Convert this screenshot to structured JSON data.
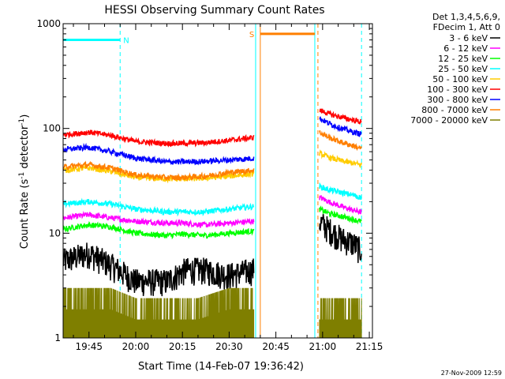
{
  "chart_data": {
    "type": "line",
    "title": "HESSI Observing Summary Count Rates",
    "xlabel": "Start Time (14-Feb-07 19:36:42)",
    "ylabel_main": "Count Rate (s",
    "ylabel_sup1": "-1",
    "ylabel_mid": " detector",
    "ylabel_sup2": "-1",
    "ylabel_end": ")",
    "y_scale": "log",
    "ylim": [
      1,
      1000
    ],
    "xlim": [
      "19:36:42",
      "21:16:00"
    ],
    "x_ticks": [
      "19:45",
      "20:00",
      "20:15",
      "20:30",
      "20:45",
      "21:00",
      "21:15"
    ],
    "y_ticks": [
      "1",
      "10",
      "100",
      "1000"
    ],
    "footer_date": "27-Nov-2009 12:59",
    "legend": {
      "header_line1": "Det 1,3,4,5,6,9,",
      "header_line2": "FDecim 1, Att 0",
      "placement": "top-right outside"
    },
    "flags": [
      {
        "label": "N",
        "color": "#00ffff",
        "start": "19:36:42",
        "end": "19:55:00",
        "level": 700
      },
      {
        "label": "S",
        "color": "#ff7f00",
        "start": "20:40:00",
        "end": "20:57:30",
        "level": 800
      }
    ],
    "boundaries": [
      {
        "time": "19:55:00",
        "color": "#00ffff",
        "style": "dashed"
      },
      {
        "time": "20:38:30",
        "color": "#00ffff",
        "style": "solid"
      },
      {
        "time": "20:40:00",
        "color": "#ff7f00",
        "style": "solid"
      },
      {
        "time": "20:57:30",
        "color": "#00ffff",
        "style": "solid"
      },
      {
        "time": "20:58:30",
        "color": "#ff7f00",
        "style": "dashed"
      },
      {
        "time": "21:12:30",
        "color": "#00ffff",
        "style": "dashed"
      }
    ],
    "segments": [
      {
        "start": "19:36:42",
        "end": "20:38:00"
      },
      {
        "start": "20:59:00",
        "end": "21:12:30"
      }
    ],
    "series": [
      {
        "name": "3 - 6 keV",
        "color": "#000000",
        "seg1": [
          [
            "19:37",
            5.5
          ],
          [
            "19:45",
            6.5
          ],
          [
            "19:52",
            5
          ],
          [
            "20:00",
            3.5
          ],
          [
            "20:10",
            3.5
          ],
          [
            "20:16",
            4.5
          ],
          [
            "20:22",
            4.5
          ],
          [
            "20:30",
            4
          ],
          [
            "20:38",
            4.5
          ]
        ],
        "seg2": [
          [
            "20:59",
            13
          ],
          [
            "21:02",
            11
          ],
          [
            "21:06",
            9
          ],
          [
            "21:10",
            8
          ],
          [
            "21:12",
            7
          ]
        ]
      },
      {
        "name": "6 - 12 keV",
        "color": "#ff00ff",
        "seg1": [
          [
            "19:37",
            14
          ],
          [
            "19:45",
            15
          ],
          [
            "19:52",
            14
          ],
          [
            "20:00",
            13
          ],
          [
            "20:10",
            12.5
          ],
          [
            "20:15",
            12.5
          ],
          [
            "20:22",
            12
          ],
          [
            "20:30",
            12.5
          ],
          [
            "20:38",
            13
          ]
        ],
        "seg2": [
          [
            "20:59",
            22
          ],
          [
            "21:02",
            20
          ],
          [
            "21:06",
            18
          ],
          [
            "21:10",
            16.5
          ],
          [
            "21:12",
            16
          ]
        ]
      },
      {
        "name": "12 - 25 keV",
        "color": "#00ff00",
        "seg1": [
          [
            "19:37",
            11
          ],
          [
            "19:45",
            12
          ],
          [
            "19:52",
            11.5
          ],
          [
            "20:00",
            10
          ],
          [
            "20:10",
            9.5
          ],
          [
            "20:15",
            9.8
          ],
          [
            "20:22",
            9.5
          ],
          [
            "20:30",
            10
          ],
          [
            "20:38",
            10.5
          ]
        ],
        "seg2": [
          [
            "20:59",
            17
          ],
          [
            "21:02",
            15.5
          ],
          [
            "21:06",
            14.5
          ],
          [
            "21:10",
            13.5
          ],
          [
            "21:12",
            13
          ]
        ]
      },
      {
        "name": "25 - 50 keV",
        "color": "#00ffff",
        "seg1": [
          [
            "19:37",
            19
          ],
          [
            "19:45",
            20
          ],
          [
            "19:52",
            19
          ],
          [
            "20:00",
            17
          ],
          [
            "20:10",
            16
          ],
          [
            "20:15",
            16
          ],
          [
            "20:22",
            16
          ],
          [
            "20:30",
            17
          ],
          [
            "20:38",
            18
          ]
        ],
        "seg2": [
          [
            "20:59",
            28
          ],
          [
            "21:02",
            26
          ],
          [
            "21:06",
            24.5
          ],
          [
            "21:10",
            23
          ],
          [
            "21:12",
            22
          ]
        ]
      },
      {
        "name": "50 - 100 keV",
        "color": "#ffcc00",
        "seg1": [
          [
            "19:37",
            40
          ],
          [
            "19:45",
            42
          ],
          [
            "19:52",
            39
          ],
          [
            "20:00",
            34
          ],
          [
            "20:10",
            33
          ],
          [
            "20:15",
            33
          ],
          [
            "20:22",
            33.5
          ],
          [
            "20:30",
            35
          ],
          [
            "20:38",
            37
          ]
        ],
        "seg2": [
          [
            "20:59",
            58
          ],
          [
            "21:02",
            53
          ],
          [
            "21:06",
            49
          ],
          [
            "21:10",
            46.5
          ],
          [
            "21:12",
            45
          ]
        ]
      },
      {
        "name": "100 - 300 keV",
        "color": "#ff0000",
        "seg1": [
          [
            "19:37",
            87
          ],
          [
            "19:45",
            92
          ],
          [
            "19:52",
            86
          ],
          [
            "20:00",
            75
          ],
          [
            "20:10",
            72
          ],
          [
            "20:15",
            72
          ],
          [
            "20:22",
            73
          ],
          [
            "20:30",
            77
          ],
          [
            "20:38",
            82
          ]
        ],
        "seg2": [
          [
            "20:59",
            150
          ],
          [
            "21:02",
            138
          ],
          [
            "21:06",
            128
          ],
          [
            "21:10",
            120
          ],
          [
            "21:12",
            116
          ]
        ]
      },
      {
        "name": "300 - 800 keV",
        "color": "#0000ff",
        "seg1": [
          [
            "19:37",
            63
          ],
          [
            "19:45",
            66
          ],
          [
            "19:52",
            60
          ],
          [
            "20:00",
            52
          ],
          [
            "20:10",
            48
          ],
          [
            "20:15",
            48
          ],
          [
            "20:22",
            48.5
          ],
          [
            "20:30",
            50
          ],
          [
            "20:38",
            52
          ]
        ],
        "seg2": [
          [
            "20:59",
            125
          ],
          [
            "21:02",
            112
          ],
          [
            "21:06",
            100
          ],
          [
            "21:10",
            92
          ],
          [
            "21:12",
            89
          ]
        ]
      },
      {
        "name": "800 - 7000 keV",
        "color": "#ff7f00",
        "seg1": [
          [
            "19:37",
            43
          ],
          [
            "19:45",
            45
          ],
          [
            "19:52",
            42
          ],
          [
            "20:00",
            36
          ],
          [
            "20:10",
            34
          ],
          [
            "20:15",
            34
          ],
          [
            "20:22",
            35
          ],
          [
            "20:30",
            38
          ],
          [
            "20:38",
            40
          ]
        ],
        "seg2": [
          [
            "20:59",
            92
          ],
          [
            "21:02",
            82
          ],
          [
            "21:06",
            74
          ],
          [
            "21:10",
            68
          ],
          [
            "21:12",
            65
          ]
        ]
      },
      {
        "name": "7000 - 20000 keV",
        "color": "#7f7f00",
        "seg1": [
          [
            "19:37",
            2.5
          ],
          [
            "19:45",
            2.5
          ],
          [
            "19:52",
            2.5
          ],
          [
            "20:00",
            2
          ],
          [
            "20:10",
            2
          ],
          [
            "20:20",
            2
          ],
          [
            "20:30",
            2.5
          ],
          [
            "20:38",
            2.5
          ]
        ],
        "seg2": [
          [
            "20:59",
            2
          ],
          [
            "21:05",
            2
          ],
          [
            "21:12",
            2
          ]
        ]
      }
    ]
  }
}
